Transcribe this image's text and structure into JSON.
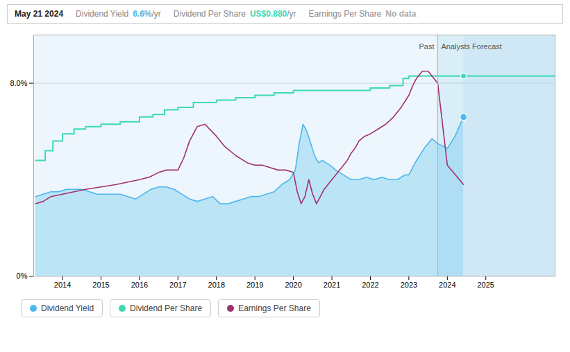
{
  "chart_data": {
    "type": "line",
    "xlim": [
      2013.25,
      2026.8
    ],
    "xticks": [
      2014,
      2015,
      2016,
      2017,
      2018,
      2019,
      2020,
      2021,
      2022,
      2023,
      2024,
      2025
    ],
    "ylim": [
      0.0,
      0.1
    ],
    "yticks": [
      {
        "value": 0.0,
        "label": "0%"
      },
      {
        "value": 0.08,
        "label": "8.0%"
      }
    ],
    "grid": "y",
    "legend": "bottom left",
    "regions": [
      {
        "x1": 2013.25,
        "x2": 2023.75,
        "color": "#edf6fc"
      },
      {
        "x1": 2023.75,
        "x2": 2024.42,
        "color": "#daeef8"
      },
      {
        "x1": 2024.42,
        "x2": 2026.8,
        "color": "#d0e8f5"
      }
    ],
    "vlines": [
      2023.75
    ],
    "annotations": [
      {
        "text": "Past",
        "x": 2023.75,
        "side": "left"
      },
      {
        "text": "Analysts Forecast",
        "x": 2023.75,
        "side": "right"
      }
    ],
    "markers": [
      {
        "series": "Dividend Yield",
        "x": 2024.42,
        "value": 0.066
      },
      {
        "series": "Dividend Per Share",
        "x": 2024.42,
        "value": 0.083
      }
    ],
    "tooltip": {
      "title": "May 21 2024",
      "rows": [
        {
          "label": "Dividend Yield",
          "value": "6.6%",
          "unit": "/yr",
          "color": "#4db8ec"
        },
        {
          "label": "Dividend Per Share",
          "value": "US$0.880",
          "unit": "/yr",
          "color": "#3dd9b5"
        },
        {
          "label": "Earnings Per Share",
          "value": "No data",
          "color": "#aaaaaa"
        }
      ]
    },
    "series": [
      {
        "name": "Dividend Yield",
        "color": "#4db8ec",
        "type": "area",
        "x": [
          2013.3,
          2013.5,
          2013.7,
          2013.9,
          2014.1,
          2014.3,
          2014.5,
          2014.7,
          2014.9,
          2015.1,
          2015.3,
          2015.5,
          2015.7,
          2015.9,
          2016.1,
          2016.3,
          2016.5,
          2016.7,
          2016.9,
          2017.1,
          2017.3,
          2017.5,
          2017.7,
          2017.9,
          2018.1,
          2018.3,
          2018.5,
          2018.7,
          2018.9,
          2019.1,
          2019.3,
          2019.5,
          2019.7,
          2019.9,
          2020.05,
          2020.15,
          2020.25,
          2020.35,
          2020.45,
          2020.55,
          2020.65,
          2020.75,
          2020.85,
          2020.95,
          2021.1,
          2021.3,
          2021.5,
          2021.7,
          2021.9,
          2022.1,
          2022.3,
          2022.5,
          2022.7,
          2022.9,
          2023.0,
          2023.2,
          2023.4,
          2023.6,
          2023.75,
          2024.0,
          2024.2,
          2024.42
        ],
        "values": [
          0.033,
          0.034,
          0.035,
          0.035,
          0.036,
          0.036,
          0.036,
          0.035,
          0.034,
          0.034,
          0.034,
          0.034,
          0.033,
          0.032,
          0.034,
          0.036,
          0.037,
          0.037,
          0.036,
          0.034,
          0.032,
          0.031,
          0.032,
          0.033,
          0.03,
          0.03,
          0.031,
          0.032,
          0.033,
          0.033,
          0.034,
          0.035,
          0.038,
          0.04,
          0.044,
          0.055,
          0.063,
          0.06,
          0.055,
          0.05,
          0.047,
          0.048,
          0.047,
          0.046,
          0.044,
          0.042,
          0.04,
          0.04,
          0.041,
          0.04,
          0.041,
          0.04,
          0.04,
          0.042,
          0.042,
          0.048,
          0.053,
          0.057,
          0.055,
          0.053,
          0.058,
          0.066
        ]
      },
      {
        "name": "Dividend Per Share",
        "color": "#3dd9b5",
        "type": "step",
        "x": [
          2013.3,
          2013.55,
          2013.75,
          2014.0,
          2014.3,
          2014.6,
          2015.0,
          2015.5,
          2016.0,
          2016.35,
          2016.65,
          2017.0,
          2017.4,
          2018.0,
          2018.5,
          2019.0,
          2019.5,
          2020.0,
          2020.5,
          2021.0,
          2021.5,
          2022.0,
          2022.5,
          2022.85,
          2023.0,
          2023.5,
          2023.75,
          2024.0,
          2024.42,
          2025.0,
          2026.8
        ],
        "values": [
          0.048,
          0.052,
          0.056,
          0.059,
          0.061,
          0.062,
          0.063,
          0.064,
          0.066,
          0.067,
          0.069,
          0.07,
          0.072,
          0.073,
          0.074,
          0.075,
          0.076,
          0.077,
          0.077,
          0.077,
          0.077,
          0.078,
          0.079,
          0.082,
          0.083,
          0.083,
          0.083,
          0.083,
          0.083,
          0.083,
          0.083
        ]
      },
      {
        "name": "Earnings Per Share",
        "color": "#a03070",
        "type": "line",
        "x": [
          2013.3,
          2013.5,
          2013.7,
          2014.0,
          2014.3,
          2014.6,
          2015.0,
          2015.4,
          2015.7,
          2016.0,
          2016.25,
          2016.5,
          2016.7,
          2017.0,
          2017.15,
          2017.3,
          2017.5,
          2017.7,
          2018.0,
          2018.2,
          2018.5,
          2018.8,
          2019.0,
          2019.2,
          2019.4,
          2019.6,
          2019.8,
          2020.0,
          2020.1,
          2020.2,
          2020.3,
          2020.4,
          2020.5,
          2020.6,
          2020.7,
          2020.8,
          2021.0,
          2021.2,
          2021.4,
          2021.5,
          2021.6,
          2021.7,
          2021.85,
          2022.0,
          2022.2,
          2022.4,
          2022.6,
          2022.8,
          2023.0,
          2023.1,
          2023.2,
          2023.35,
          2023.5,
          2023.6,
          2023.75,
          2024.0,
          2024.42
        ],
        "values": [
          0.03,
          0.031,
          0.033,
          0.034,
          0.035,
          0.036,
          0.037,
          0.038,
          0.039,
          0.04,
          0.041,
          0.043,
          0.044,
          0.044,
          0.049,
          0.056,
          0.062,
          0.063,
          0.058,
          0.054,
          0.05,
          0.047,
          0.046,
          0.046,
          0.045,
          0.044,
          0.044,
          0.043,
          0.035,
          0.03,
          0.033,
          0.04,
          0.034,
          0.03,
          0.033,
          0.036,
          0.04,
          0.044,
          0.048,
          0.051,
          0.053,
          0.056,
          0.058,
          0.059,
          0.061,
          0.063,
          0.066,
          0.07,
          0.075,
          0.079,
          0.082,
          0.085,
          0.085,
          0.083,
          0.08,
          0.046,
          0.038
        ]
      }
    ]
  }
}
